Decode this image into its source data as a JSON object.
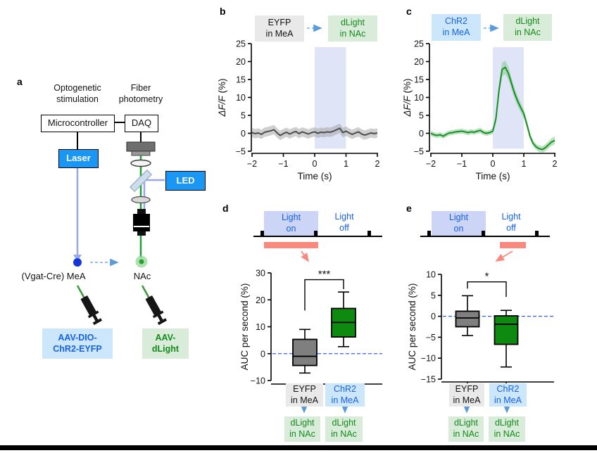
{
  "colors": {
    "device_blue": "#1a97f5",
    "label_blue_bg": "#cce6fb",
    "label_green_bg": "#d8ecd9",
    "label_gray_bg": "#e9e9e9",
    "stim_band": "#ccd3f1",
    "timeline_blue": "#ccd5f6",
    "salmon": "#f9897d",
    "box_green": "#0e8a10",
    "box_gray": "#7f7f7f",
    "zero_dash_blue": "#3a5bff",
    "text_blue": "#1661e8",
    "text_green": "#15891c",
    "trace_gray": "#4d4d4d",
    "trace_green": "#149221"
  },
  "panels": {
    "a": {
      "label": "a",
      "opto_line1": "Optogenetic",
      "opto_line2": "stimulation",
      "fiber_line1": "Fiber",
      "fiber_line2": "photometry",
      "microcontroller": "Microcontroller",
      "daq": "DAQ",
      "laser": "Laser",
      "led": "LED",
      "region_left": "(Vgat-Cre) MeA",
      "region_right": "NAc",
      "virus_left_line1": "AAV-DIO-",
      "virus_left_line2": "ChR2-EYFP",
      "virus_right_line1": "AAV-",
      "virus_right_line2": "dLight"
    },
    "b": {
      "label": "b",
      "source_line1": "EYFP",
      "source_line2": "in MeA",
      "target_line1": "dLight",
      "target_line2": "in NAc"
    },
    "c": {
      "label": "c",
      "source_line1": "ChR2",
      "source_line2": "in MeA",
      "target_line1": "dLight",
      "target_line2": "in NAc"
    },
    "d": {
      "label": "d",
      "on_line1": "Light",
      "on_line2": "on",
      "off_line1": "Light",
      "off_line2": "off",
      "group1_line1": "EYFP",
      "group1_line2": "in MeA",
      "group2_line1": "ChR2",
      "group2_line2": "in MeA",
      "t1_line1": "dLight",
      "t1_line2": "in NAc",
      "t2_line1": "dLight",
      "t2_line2": "in NAc"
    },
    "e": {
      "label": "e",
      "on_line1": "Light",
      "on_line2": "on",
      "off_line1": "Light",
      "off_line2": "off",
      "group1_line1": "EYFP",
      "group1_line2": "in MeA",
      "group2_line1": "ChR2",
      "group2_line2": "in MeA",
      "t1_line1": "dLight",
      "t1_line2": "in NAc",
      "t2_line1": "dLight",
      "t2_line2": "in NAc"
    }
  },
  "chart_data": [
    {
      "id": "photometry_eyfp",
      "type": "line",
      "xlabel": "Time (s)",
      "ylabel": "ΔF/F (%)",
      "xlim": [
        -2,
        2
      ],
      "ylim": [
        -5,
        25
      ],
      "xticks": [
        [
          -2,
          "−2"
        ],
        [
          -1,
          "−1"
        ],
        [
          0,
          "0"
        ],
        [
          1,
          "1"
        ],
        [
          2,
          "2"
        ]
      ],
      "yticks": [
        [
          25,
          "25"
        ],
        [
          20,
          "20"
        ],
        [
          15,
          "15"
        ],
        [
          10,
          "10"
        ],
        [
          5,
          "5"
        ],
        [
          0,
          "0"
        ],
        [
          -5,
          "−5"
        ]
      ],
      "stim_band": [
        0,
        1
      ],
      "band_color": "#ccd3f1",
      "series": [
        {
          "name": "EYFP in MeA, dLight in NAc",
          "color": "#4d4d4d",
          "shade": "#a0a0a0",
          "x": [
            -2,
            -1.9,
            -1.8,
            -1.7,
            -1.6,
            -1.5,
            -1.4,
            -1.3,
            -1.2,
            -1.1,
            -1,
            -0.9,
            -0.8,
            -0.7,
            -0.6,
            -0.5,
            -0.4,
            -0.3,
            -0.2,
            -0.1,
            0,
            0.1,
            0.2,
            0.3,
            0.4,
            0.5,
            0.6,
            0.7,
            0.8,
            0.9,
            1,
            1.1,
            1.2,
            1.3,
            1.4,
            1.5,
            1.6,
            1.7,
            1.8,
            1.9,
            2
          ],
          "y": [
            0.2,
            -0.1,
            0.1,
            -0.3,
            0.3,
            0.5,
            0.7,
            1.0,
            0.1,
            -0.6,
            -0.1,
            0.3,
            -0.2,
            0.2,
            0.5,
            -0.1,
            0.4,
            0.1,
            -0.2,
            0.2,
            0.4,
            0.0,
            0.3,
            0.2,
            0.4,
            0.3,
            0.6,
            1.0,
            1.4,
            0.2,
            0.6,
            0.1,
            -0.3,
            0.1,
            0.4,
            -0.2,
            -0.5,
            -0.2,
            0.1,
            -0.1,
            0.1
          ],
          "err": 1.3
        }
      ]
    },
    {
      "id": "photometry_chr2",
      "type": "line",
      "xlabel": "Time (s)",
      "ylabel": "ΔF/F (%)",
      "xlim": [
        -2,
        2
      ],
      "ylim": [
        -5,
        25
      ],
      "xticks": [
        [
          -2,
          "−2"
        ],
        [
          -1,
          "−1"
        ],
        [
          0,
          "0"
        ],
        [
          1,
          "1"
        ],
        [
          2,
          "2"
        ]
      ],
      "yticks": [
        [
          25,
          "25"
        ],
        [
          20,
          "20"
        ],
        [
          15,
          "15"
        ],
        [
          10,
          "10"
        ],
        [
          5,
          "5"
        ],
        [
          0,
          "0"
        ],
        [
          -5,
          "−5"
        ]
      ],
      "stim_band": [
        0,
        1
      ],
      "band_color": "#ccd3f1",
      "series": [
        {
          "name": "ChR2 in MeA, dLight in NAc",
          "color": "#149221",
          "shade": "#7fc487",
          "x": [
            -2,
            -1.9,
            -1.8,
            -1.7,
            -1.6,
            -1.5,
            -1.4,
            -1.3,
            -1.2,
            -1.1,
            -1,
            -0.9,
            -0.8,
            -0.7,
            -0.6,
            -0.5,
            -0.4,
            -0.3,
            -0.2,
            -0.1,
            0,
            0.1,
            0.2,
            0.3,
            0.4,
            0.5,
            0.6,
            0.7,
            0.8,
            0.9,
            1,
            1.1,
            1.2,
            1.3,
            1.4,
            1.5,
            1.6,
            1.7,
            1.8,
            1.9,
            2
          ],
          "y": [
            0.0,
            -0.4,
            -0.6,
            -0.4,
            -0.8,
            -0.3,
            0.1,
            0.2,
            0.4,
            0.5,
            0.6,
            0.4,
            0.2,
            0.4,
            0.3,
            0.6,
            0.8,
            0.2,
            0.0,
            0.2,
            0.6,
            4.0,
            12.0,
            17.8,
            18.4,
            16.8,
            14.0,
            11.2,
            9.0,
            7.2,
            5.5,
            2.5,
            -0.8,
            -2.8,
            -3.8,
            -4.3,
            -4.5,
            -4.0,
            -3.2,
            -2.4,
            -2.0
          ],
          "err": [
            0.7,
            0.7,
            0.7,
            0.7,
            0.7,
            0.7,
            0.7,
            0.7,
            0.7,
            0.7,
            0.7,
            0.7,
            0.7,
            0.7,
            0.7,
            0.7,
            0.8,
            0.7,
            0.7,
            0.7,
            0.8,
            1.2,
            1.6,
            1.9,
            1.9,
            1.8,
            1.6,
            1.5,
            1.4,
            1.3,
            1.2,
            1.0,
            0.9,
            0.8,
            0.8,
            0.9,
            0.9,
            1.0,
            1.0,
            1.1,
            1.1
          ]
        }
      ]
    },
    {
      "id": "auc_light_on",
      "type": "box",
      "ylabel": "AUC per second (%)",
      "ylim": [
        -10,
        30
      ],
      "yticks": [
        [
          30,
          "30"
        ],
        [
          20,
          "20"
        ],
        [
          10,
          "10"
        ],
        [
          0,
          "0"
        ],
        [
          -10,
          "−10"
        ]
      ],
      "zero_line": true,
      "significance": "***",
      "groups": [
        {
          "name": "EYFP in MeA",
          "color": "#7f7f7f",
          "whisker_low": -7.2,
          "q1": -4.4,
          "median": -1.0,
          "q3": 5.3,
          "whisker_high": 9.0
        },
        {
          "name": "ChR2 in MeA",
          "color": "#0e8a10",
          "whisker_low": 2.6,
          "q1": 6.2,
          "median": 11.6,
          "q3": 16.8,
          "whisker_high": 22.9
        }
      ]
    },
    {
      "id": "auc_light_off",
      "type": "box",
      "ylabel": "AUC per second (%)",
      "ylim": [
        -15,
        10
      ],
      "yticks": [
        [
          10,
          "10"
        ],
        [
          5,
          "5"
        ],
        [
          0,
          "0"
        ],
        [
          -5,
          "−5"
        ],
        [
          -10,
          "−10"
        ],
        [
          -15,
          "−15"
        ]
      ],
      "zero_line": true,
      "significance": "*",
      "groups": [
        {
          "name": "EYFP in MeA",
          "color": "#7f7f7f",
          "whisker_low": -4.6,
          "q1": -2.5,
          "median": -0.4,
          "q3": 1.2,
          "whisker_high": 4.9
        },
        {
          "name": "ChR2 in MeA",
          "color": "#0e8a10",
          "whisker_low": -12.1,
          "q1": -6.7,
          "median": -1.9,
          "q3": 0.1,
          "whisker_high": 1.4
        }
      ]
    }
  ]
}
